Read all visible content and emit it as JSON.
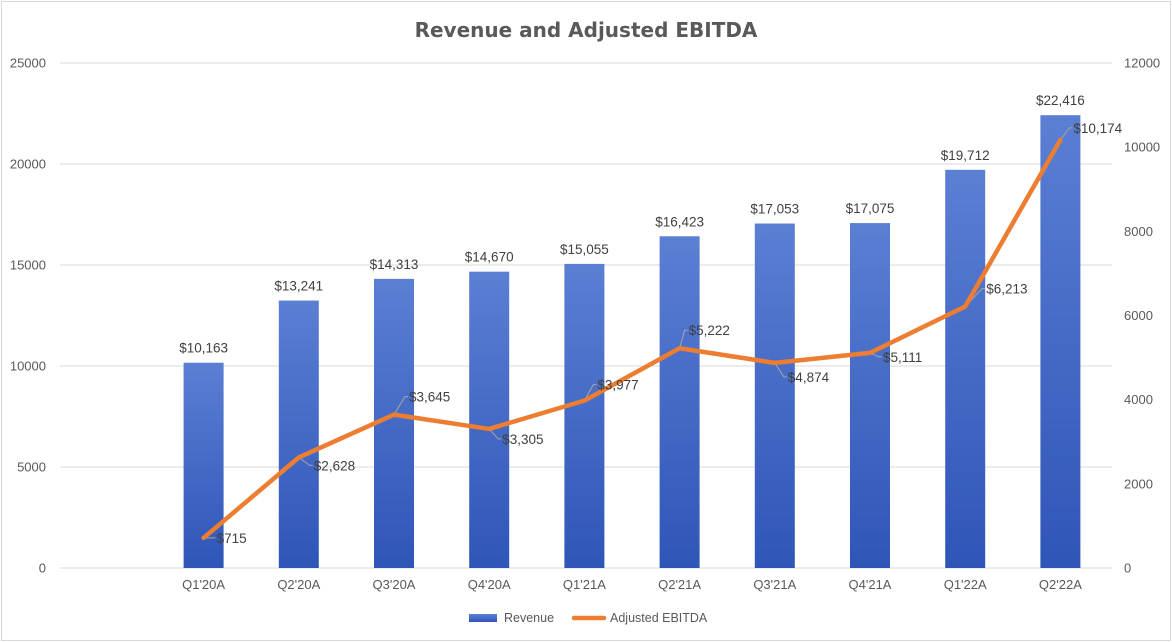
{
  "chart_data": {
    "type": "bar",
    "title": "Revenue and Adjusted EBITDA",
    "categories": [
      "Q1'20A",
      "Q2'20A",
      "Q3'20A",
      "Q4'20A",
      "Q1'21A",
      "Q2'21A",
      "Q3'21A",
      "Q4'21A",
      "Q1'22A",
      "Q2'22A"
    ],
    "series": [
      {
        "name": "Revenue",
        "type": "bar",
        "axis": "left",
        "values": [
          10163,
          13241,
          14313,
          14670,
          15055,
          16423,
          17053,
          17075,
          19712,
          22416
        ],
        "labels": [
          "$10,163",
          "$13,241",
          "$14,313",
          "$14,670",
          "$15,055",
          "$16,423",
          "$17,053",
          "$17,075",
          "$19,712",
          "$22,416"
        ]
      },
      {
        "name": "Adjusted EBITDA",
        "type": "line",
        "axis": "right",
        "values": [
          715,
          2628,
          3645,
          3305,
          3977,
          5222,
          4874,
          5111,
          6213,
          10174
        ],
        "labels": [
          "$715",
          "$2,628",
          "$3,645",
          "$3,305",
          "$3,977",
          "$5,222",
          "$4,874",
          "$5,111",
          "$6,213",
          "$10,174"
        ]
      }
    ],
    "y_left": {
      "ticks": [
        "0",
        "5000",
        "10000",
        "15000",
        "20000",
        "25000"
      ],
      "range": [
        0,
        25000
      ]
    },
    "y_right": {
      "ticks": [
        "0",
        "2000",
        "4000",
        "6000",
        "8000",
        "10000",
        "12000"
      ],
      "range": [
        0,
        12000
      ]
    },
    "grid": true,
    "legend_position": "bottom",
    "colors": {
      "bar_top": "#5b7fd3",
      "bar_bottom": "#2f55b8",
      "line": "#ed7d31",
      "grid": "#d9d9d9",
      "text": "#595959"
    }
  }
}
